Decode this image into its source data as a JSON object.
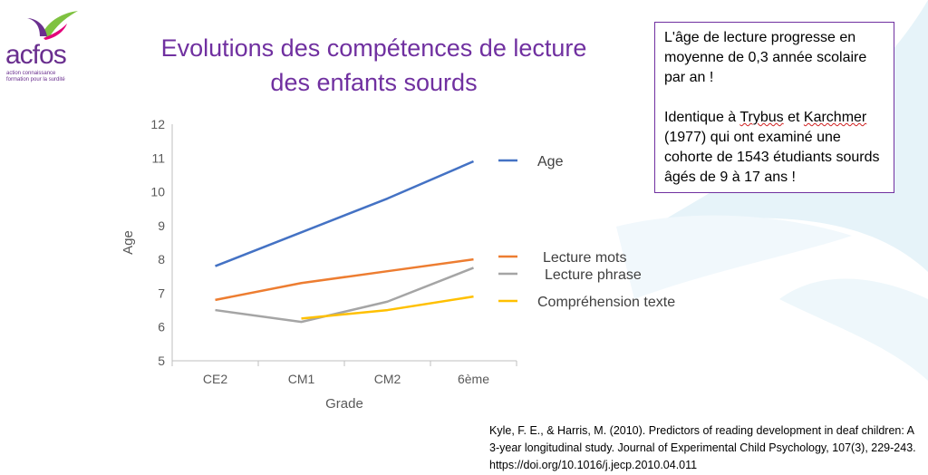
{
  "logo": {
    "name": "acfos",
    "tagline_1": "action connaissance",
    "tagline_2": "formation pour la surdité"
  },
  "title_line1": "Evolutions des compétences de lecture",
  "title_line2": "des enfants sourds",
  "note": {
    "p1": "L'âge de lecture progresse en moyenne de 0,3 année scolaire par an !",
    "p2_a": "Identique à ",
    "p2_trybus": "Trybus",
    "p2_b": " et ",
    "p2_karchmer": "Karchmer",
    "p2_c": " (1977) qui ont examiné une cohorte de 1543 étudiants sourds âgés de 9 à 17 ans !"
  },
  "citation": "Kyle, F. E., & Harris, M. (2010). Predictors of reading development in deaf children: A 3-year longitudinal study. Journal of Experimental Child Psychology, 107(3), 229-243. https://doi.org/10.1016/j.jecp.2010.04.011",
  "colors": {
    "title": "#7030a0",
    "age": "#4472c4",
    "mots": "#ed7d31",
    "phrase": "#a5a5a5",
    "texte": "#ffc000"
  },
  "chart_data": {
    "type": "line",
    "categories": [
      "CE2",
      "CM1",
      "CM2",
      "6ème"
    ],
    "xlabel": "Grade",
    "ylabel": "Age",
    "ylim": [
      5,
      12
    ],
    "yticks": [
      5,
      6,
      7,
      8,
      9,
      10,
      11,
      12
    ],
    "grid": false,
    "legend_position": "right",
    "series": [
      {
        "name": "Age",
        "color": "#4472c4",
        "values": [
          7.8,
          8.8,
          9.8,
          10.9
        ]
      },
      {
        "name": "Lecture mots",
        "color": "#ed7d31",
        "values": [
          6.8,
          7.3,
          7.65,
          8.0
        ]
      },
      {
        "name": "Lecture phrase",
        "color": "#a5a5a5",
        "values": [
          6.5,
          6.15,
          6.75,
          7.75
        ]
      },
      {
        "name": "Compréhension texte",
        "color": "#ffc000",
        "values": [
          null,
          6.25,
          6.5,
          6.9
        ]
      }
    ]
  }
}
